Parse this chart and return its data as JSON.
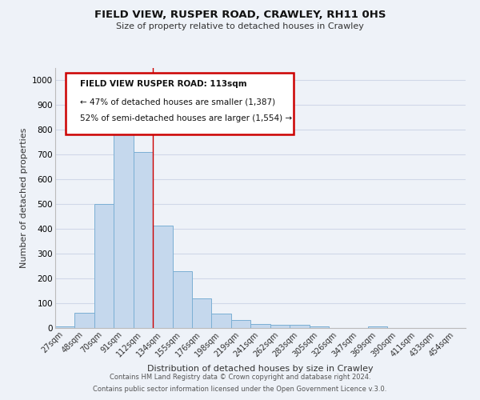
{
  "title": "FIELD VIEW, RUSPER ROAD, CRAWLEY, RH11 0HS",
  "subtitle": "Size of property relative to detached houses in Crawley",
  "xlabel": "Distribution of detached houses by size in Crawley",
  "ylabel": "Number of detached properties",
  "bar_color": "#c5d8ed",
  "bar_edge_color": "#7bafd4",
  "categories": [
    "27sqm",
    "48sqm",
    "70sqm",
    "91sqm",
    "112sqm",
    "134sqm",
    "155sqm",
    "176sqm",
    "198sqm",
    "219sqm",
    "241sqm",
    "262sqm",
    "283sqm",
    "305sqm",
    "326sqm",
    "347sqm",
    "369sqm",
    "390sqm",
    "411sqm",
    "433sqm",
    "454sqm"
  ],
  "values": [
    8,
    62,
    500,
    820,
    710,
    415,
    230,
    120,
    58,
    33,
    15,
    12,
    12,
    5,
    0,
    0,
    8,
    0,
    0,
    0,
    0
  ],
  "ylim": [
    0,
    1050
  ],
  "yticks": [
    0,
    100,
    200,
    300,
    400,
    500,
    600,
    700,
    800,
    900,
    1000
  ],
  "annotation_title": "FIELD VIEW RUSPER ROAD: 113sqm",
  "annotation_line1": "← 47% of detached houses are smaller (1,387)",
  "annotation_line2": "52% of semi-detached houses are larger (1,554) →",
  "annotation_box_facecolor": "#ffffff",
  "annotation_box_edgecolor": "#cc0000",
  "grid_color": "#d0d8e8",
  "background_color": "#eef2f8",
  "footer1": "Contains HM Land Registry data © Crown copyright and database right 2024.",
  "footer2": "Contains public sector information licensed under the Open Government Licence v.3.0."
}
